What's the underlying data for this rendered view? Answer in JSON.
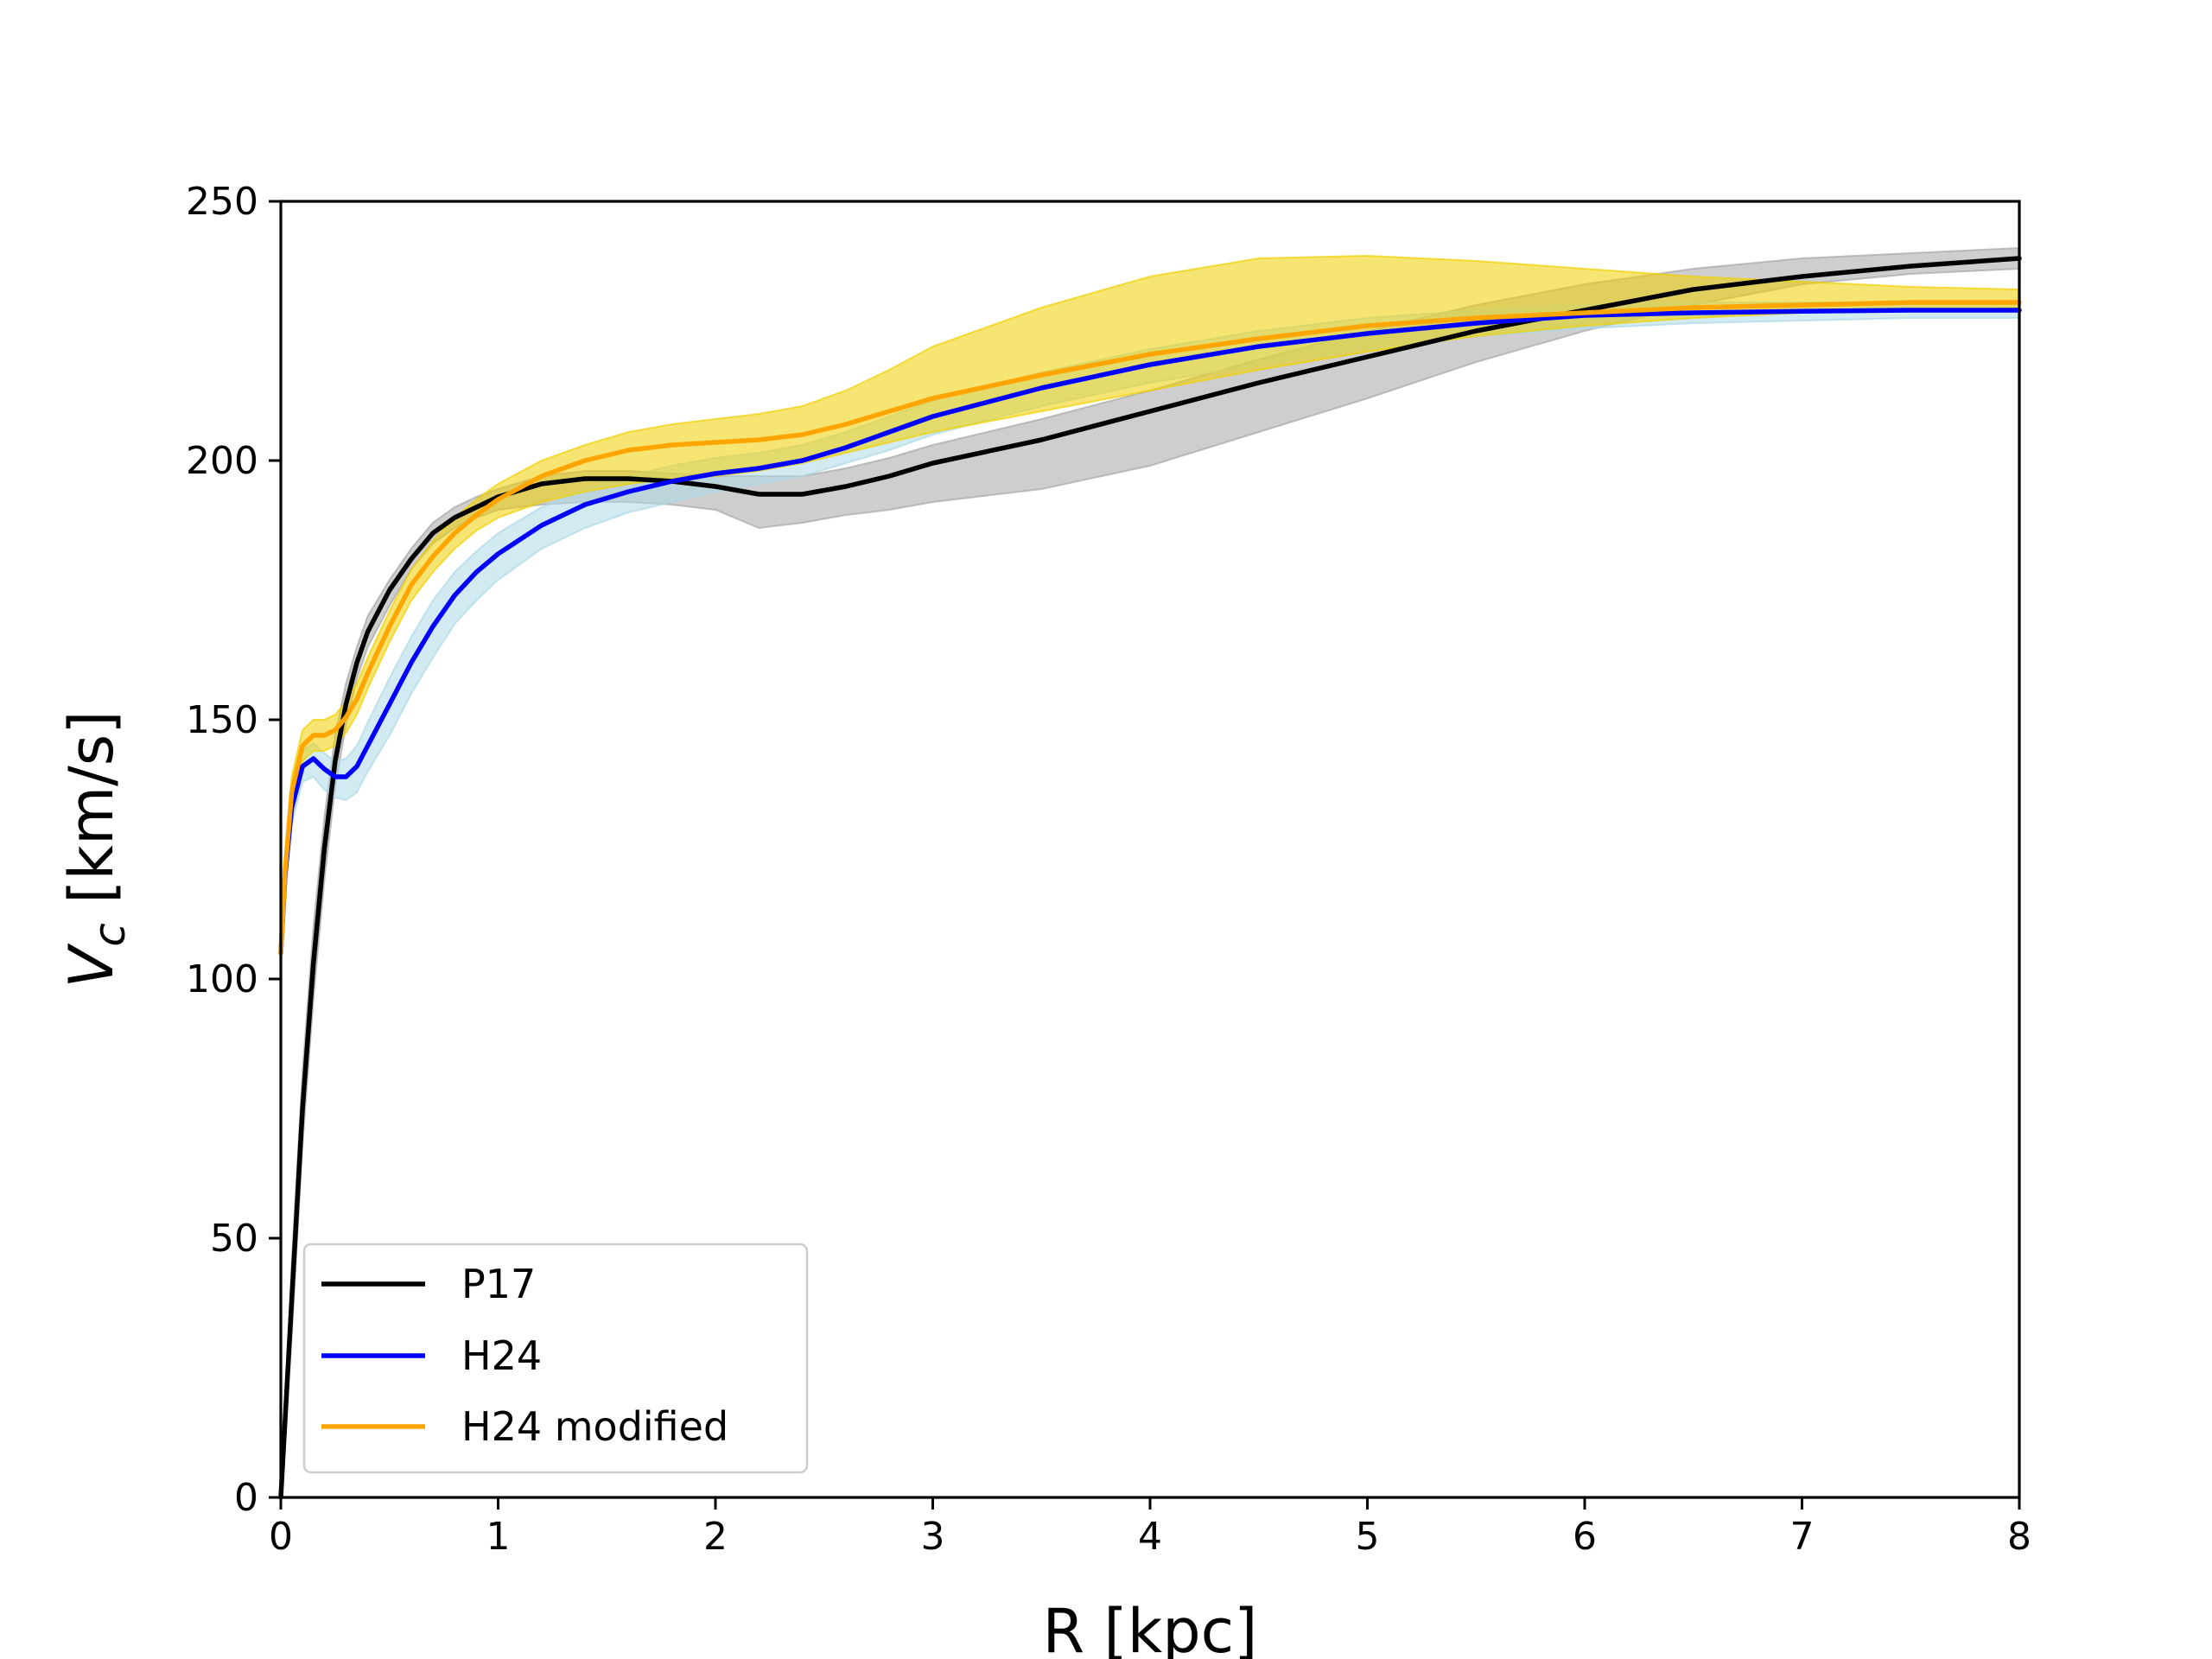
{
  "chart_data": {
    "type": "line",
    "title": "",
    "xlabel": "R [kpc]",
    "ylabel_main": "V",
    "ylabel_sub": "c",
    "ylabel_units": " [km/s]",
    "xlim": [
      0,
      8
    ],
    "ylim": [
      0,
      250
    ],
    "xticks": [
      0,
      1,
      2,
      3,
      4,
      5,
      6,
      7,
      8
    ],
    "yticks": [
      0,
      50,
      100,
      150,
      200,
      250
    ],
    "grid": false,
    "legend_position": "lower-left",
    "series": [
      {
        "name": "P17",
        "color": "#000000",
        "band_color": "#a6a6a6",
        "x": [
          0,
          0.05,
          0.1,
          0.15,
          0.2,
          0.25,
          0.3,
          0.35,
          0.4,
          0.5,
          0.6,
          0.7,
          0.8,
          0.9,
          1.0,
          1.2,
          1.4,
          1.6,
          1.8,
          2.0,
          2.2,
          2.4,
          2.6,
          2.8,
          3.0,
          3.5,
          4.0,
          4.5,
          5.0,
          5.5,
          6.0,
          6.5,
          7.0,
          7.5,
          8.0
        ],
        "values": [
          0,
          38,
          75,
          103,
          125,
          142,
          153,
          161,
          167,
          175,
          181,
          186,
          189,
          191,
          193,
          195.5,
          196.5,
          196.5,
          196,
          195,
          193.5,
          193.5,
          195,
          197,
          199.5,
          204,
          209.5,
          215,
          220,
          225,
          229,
          233,
          235.5,
          237.5,
          239
        ],
        "band_upper": [
          0,
          45,
          82,
          110,
          131,
          147,
          157,
          164,
          170,
          177,
          183,
          188,
          191,
          193,
          194.5,
          197,
          198,
          198,
          197.5,
          197,
          197,
          197,
          198.5,
          200.5,
          203,
          208,
          213.5,
          219.5,
          225,
          230,
          234,
          237,
          239,
          240,
          241
        ],
        "band_lower": [
          0,
          31,
          68,
          96,
          119,
          137,
          149,
          158,
          164,
          172,
          179,
          184,
          187,
          189,
          190.5,
          191.5,
          192,
          192,
          191.5,
          190.5,
          187,
          188,
          189.5,
          190.5,
          192,
          194.5,
          199,
          205.5,
          212,
          219,
          225,
          230,
          234,
          236,
          237
        ]
      },
      {
        "name": "H24",
        "color": "#0000ff",
        "band_color": "#add8e6",
        "x": [
          0,
          0.02,
          0.05,
          0.1,
          0.15,
          0.2,
          0.25,
          0.3,
          0.35,
          0.4,
          0.5,
          0.6,
          0.7,
          0.8,
          0.9,
          1.0,
          1.2,
          1.4,
          1.6,
          1.8,
          2.0,
          2.2,
          2.4,
          2.6,
          2.8,
          3.0,
          3.5,
          4.0,
          4.5,
          5.0,
          5.5,
          6.0,
          6.5,
          7.0,
          7.5,
          8.0
        ],
        "values": [
          105,
          120,
          133,
          141,
          142.5,
          140.5,
          139,
          139,
          141,
          145,
          153,
          161,
          168,
          174,
          178.5,
          182,
          187.5,
          191.5,
          194,
          196,
          197.5,
          198.5,
          200,
          202.5,
          205.5,
          208.5,
          214,
          218.5,
          222,
          224.5,
          226.5,
          228,
          228.5,
          228.8,
          229,
          229
        ],
        "band_upper": [
          107,
          123,
          136,
          144,
          145.5,
          143.5,
          142,
          142.5,
          145,
          149.5,
          158,
          166,
          173,
          178.5,
          182.5,
          186,
          191,
          194.5,
          197,
          199,
          200.5,
          201.5,
          203,
          205.5,
          208.5,
          211.5,
          217,
          221.5,
          225,
          227.5,
          229,
          230,
          230.5,
          230.5,
          230.5,
          230.5
        ],
        "band_lower": [
          103,
          117,
          130,
          138,
          139,
          136.5,
          135,
          134.5,
          136,
          140,
          147,
          155,
          162,
          168.5,
          173,
          177,
          183,
          187,
          190,
          192,
          194,
          195.5,
          197,
          199.5,
          202,
          205,
          210.5,
          215,
          218.5,
          221.5,
          224,
          225.5,
          226.5,
          227,
          227.5,
          227.5
        ]
      },
      {
        "name": "H24 modified",
        "color": "#ffa500",
        "band_color": "#f0d000",
        "x": [
          0,
          0.02,
          0.05,
          0.1,
          0.15,
          0.2,
          0.25,
          0.3,
          0.35,
          0.4,
          0.5,
          0.6,
          0.7,
          0.8,
          0.9,
          1.0,
          1.2,
          1.4,
          1.6,
          1.8,
          2.0,
          2.2,
          2.4,
          2.6,
          2.8,
          3.0,
          3.5,
          4.0,
          4.5,
          5.0,
          5.5,
          6.0,
          6.5,
          7.0,
          7.5,
          8.0
        ],
        "values": [
          105,
          121,
          136,
          145,
          147,
          147,
          148,
          150.5,
          154,
          159,
          168,
          176,
          181.5,
          186,
          189.5,
          192.5,
          197,
          200,
          202,
          203,
          203.5,
          204,
          205,
          207,
          209.5,
          212,
          216.5,
          220.5,
          223.5,
          226,
          227.5,
          228.5,
          229.5,
          230,
          230.5,
          230.5
        ],
        "band_upper": [
          108,
          124,
          139,
          148,
          150,
          150,
          151,
          153.5,
          157,
          162,
          171,
          179,
          184.5,
          189,
          192.5,
          195.5,
          200,
          203,
          205.5,
          207,
          208,
          209,
          210.5,
          213.5,
          217.5,
          222,
          229.5,
          235.5,
          239,
          239.5,
          238.5,
          237,
          235.5,
          234.5,
          233.5,
          233
        ],
        "band_lower": [
          102,
          118,
          133,
          142,
          144,
          144,
          145,
          147.5,
          151,
          156,
          165,
          173,
          178.5,
          183,
          186.5,
          189,
          192,
          194,
          195.5,
          196.5,
          197,
          198,
          199.5,
          201.5,
          203.5,
          205.5,
          209.5,
          213.5,
          217.5,
          221,
          224,
          226,
          227.5,
          228.5,
          229,
          229.5
        ]
      }
    ]
  }
}
